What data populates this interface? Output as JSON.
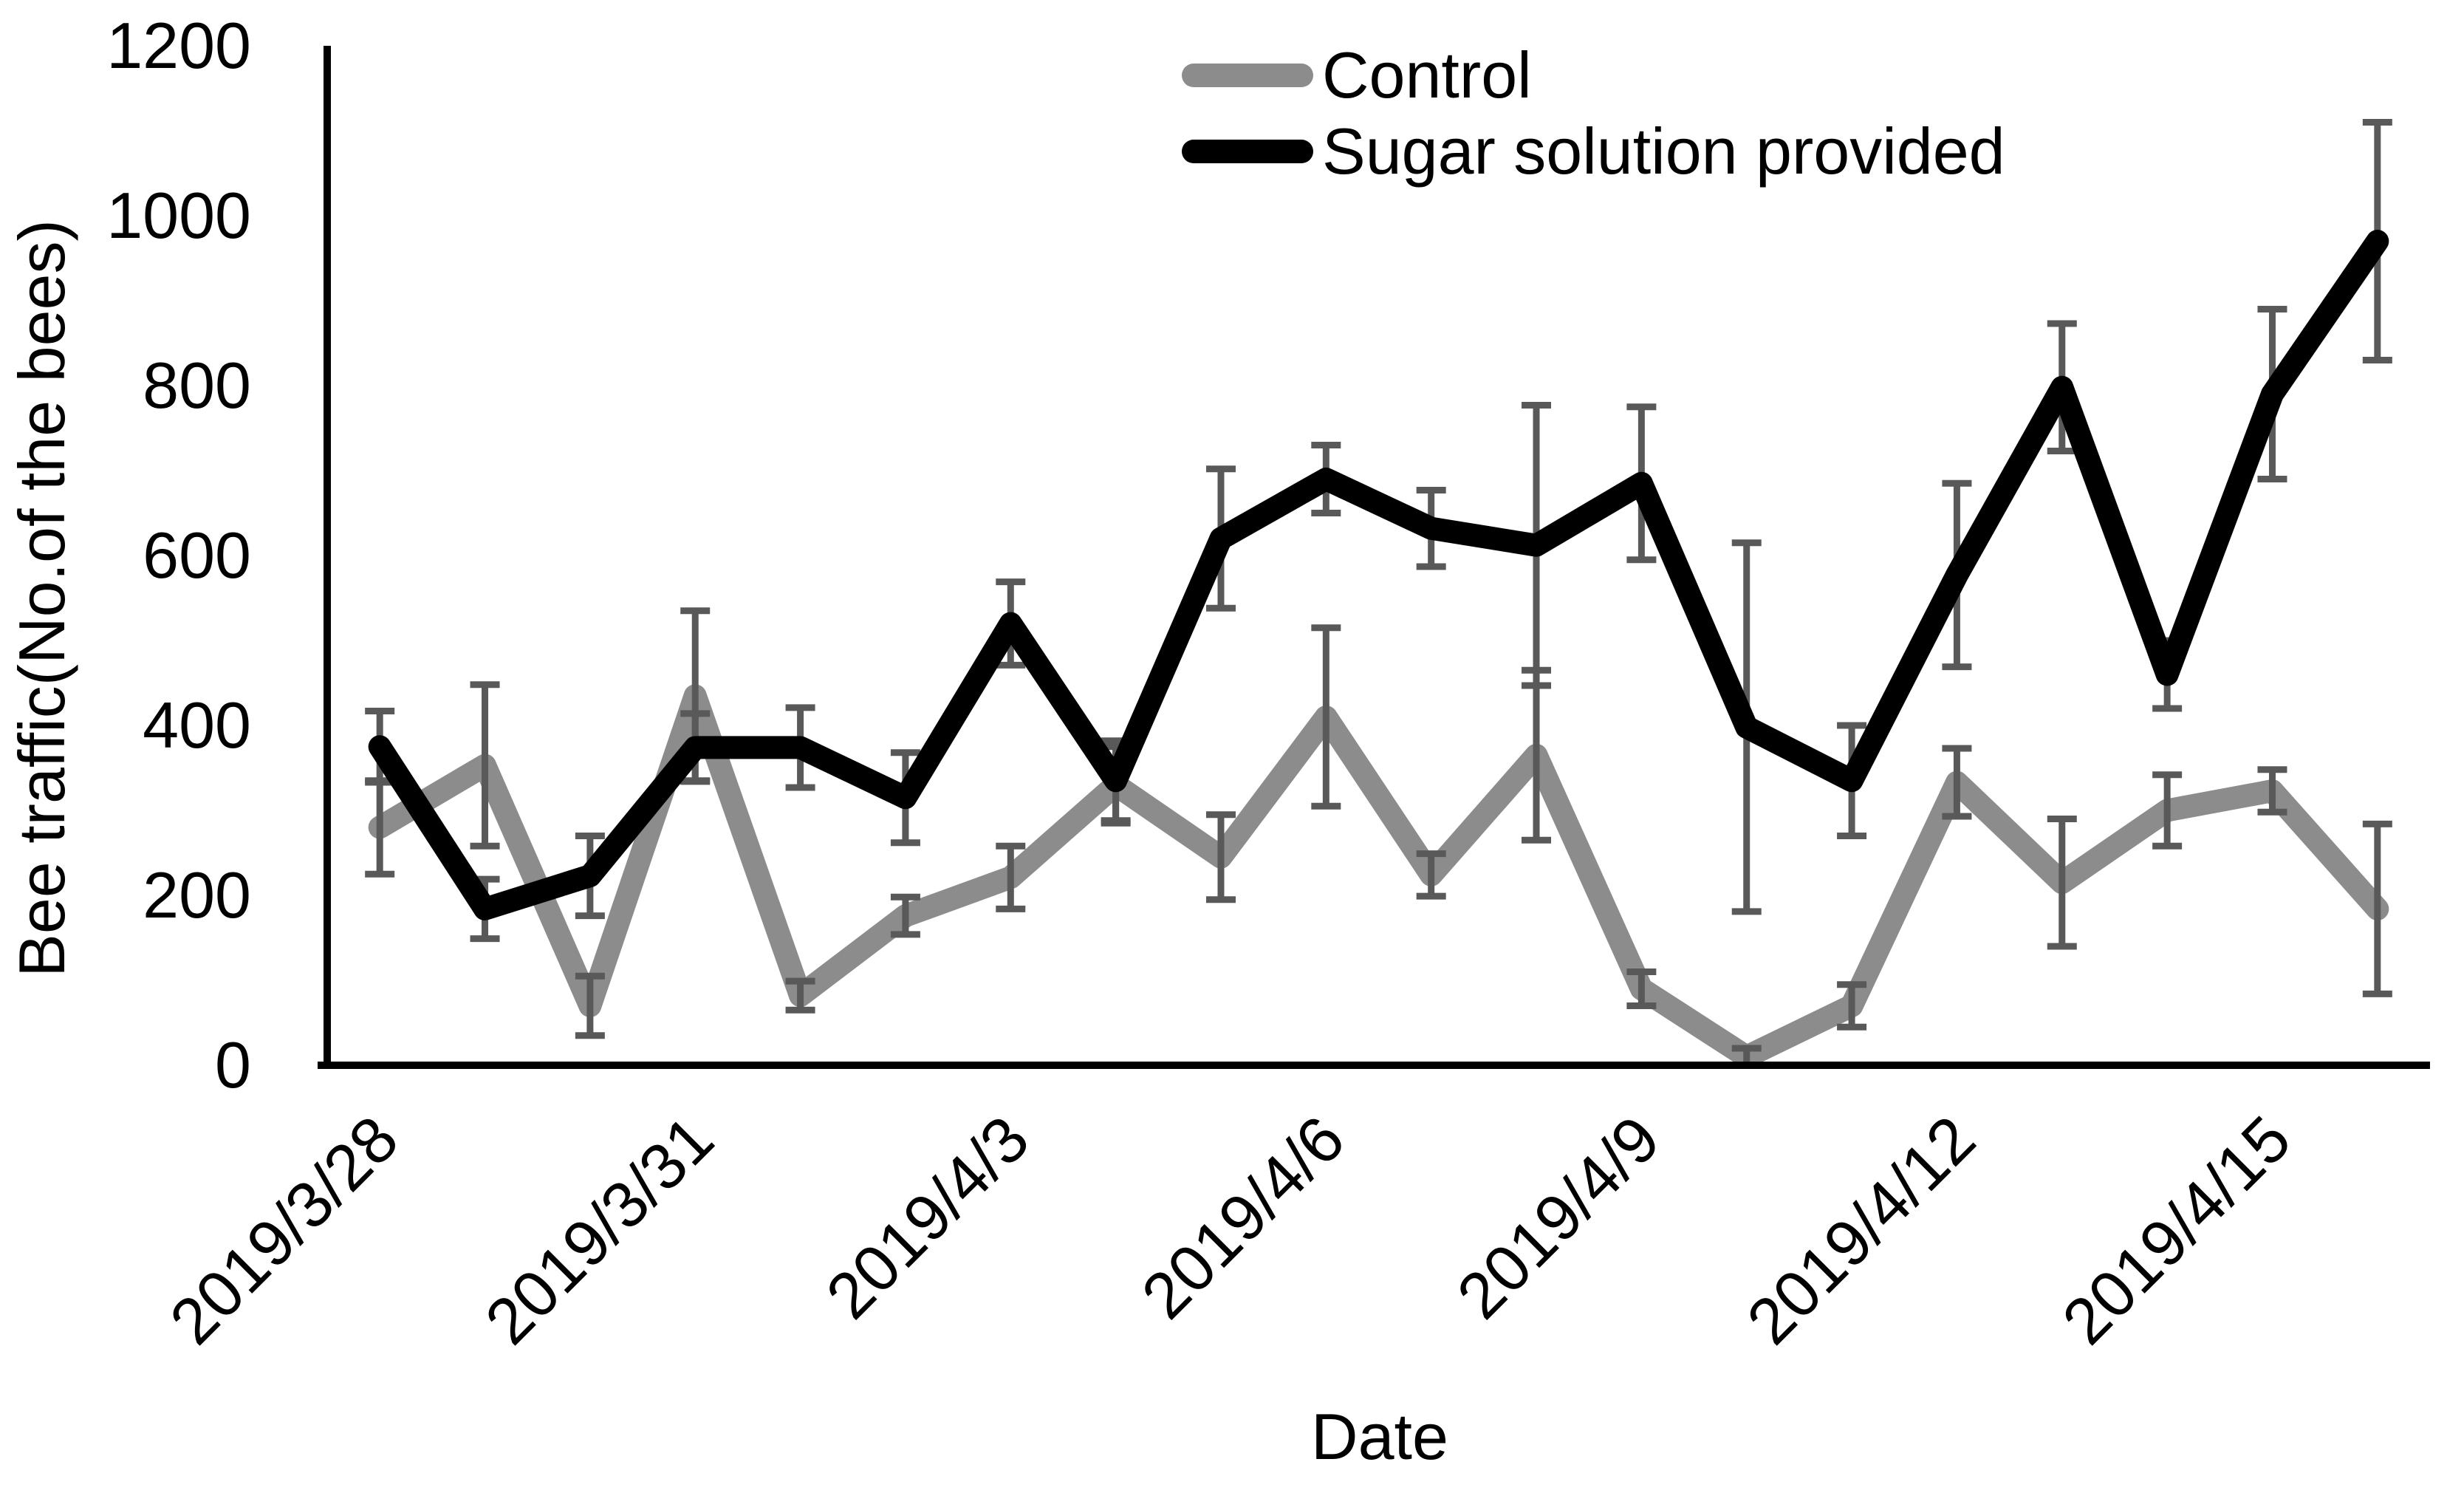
{
  "page": {
    "background": "#ffffff"
  },
  "chart_data": {
    "type": "line",
    "title": "",
    "xlabel": "Date",
    "ylabel": "Bee traffic(No.of the bees)",
    "ylim": [
      0,
      1200
    ],
    "yticks": [
      0,
      200,
      400,
      600,
      800,
      1000,
      1200
    ],
    "grid": false,
    "legend_position": "top-center",
    "error_bars": true,
    "error_bar_color": "#595959",
    "n_points": 20,
    "categories": [
      "2019/3/28",
      "2019/3/29",
      "2019/3/30",
      "2019/3/31",
      "2019/4/1",
      "2019/4/2",
      "2019/4/3",
      "2019/4/4",
      "2019/4/5",
      "2019/4/6",
      "2019/4/7",
      "2019/4/8",
      "2019/4/9",
      "2019/4/10",
      "2019/4/11",
      "2019/4/12",
      "2019/4/13",
      "2019/4/14",
      "2019/4/15",
      "2019/4/16"
    ],
    "x_tick_labels": [
      "2019/3/28",
      "2019/3/31",
      "2019/4/3",
      "2019/4/6",
      "2019/4/9",
      "2019/4/12",
      "2019/4/15"
    ],
    "x_tick_category_indices": [
      0,
      3,
      6,
      9,
      12,
      15,
      18
    ],
    "series": [
      {
        "name": "Control",
        "color": "#8c8c8c",
        "values": [
          280,
          353,
          70,
          435,
          82,
          176,
          221,
          330,
          245,
          410,
          224,
          365,
          90,
          10,
          70,
          333,
          215,
          300,
          323,
          184
        ],
        "errors": [
          55,
          95,
          35,
          100,
          17,
          22,
          37,
          45,
          50,
          105,
          25,
          100,
          20,
          10,
          25,
          40,
          75,
          42,
          25,
          100
        ]
      },
      {
        "name": "Sugar solution provided",
        "color": "#000000",
        "values": [
          375,
          184,
          223,
          374,
          374,
          315,
          520,
          335,
          620,
          690,
          632,
          612,
          685,
          398,
          335,
          577,
          798,
          460,
          790,
          970
        ],
        "errors": [
          42,
          35,
          47,
          40,
          47,
          53,
          49,
          47,
          82,
          40,
          45,
          165,
          90,
          217,
          65,
          108,
          75,
          40,
          100,
          140
        ]
      }
    ],
    "axis_color": "#000000"
  }
}
